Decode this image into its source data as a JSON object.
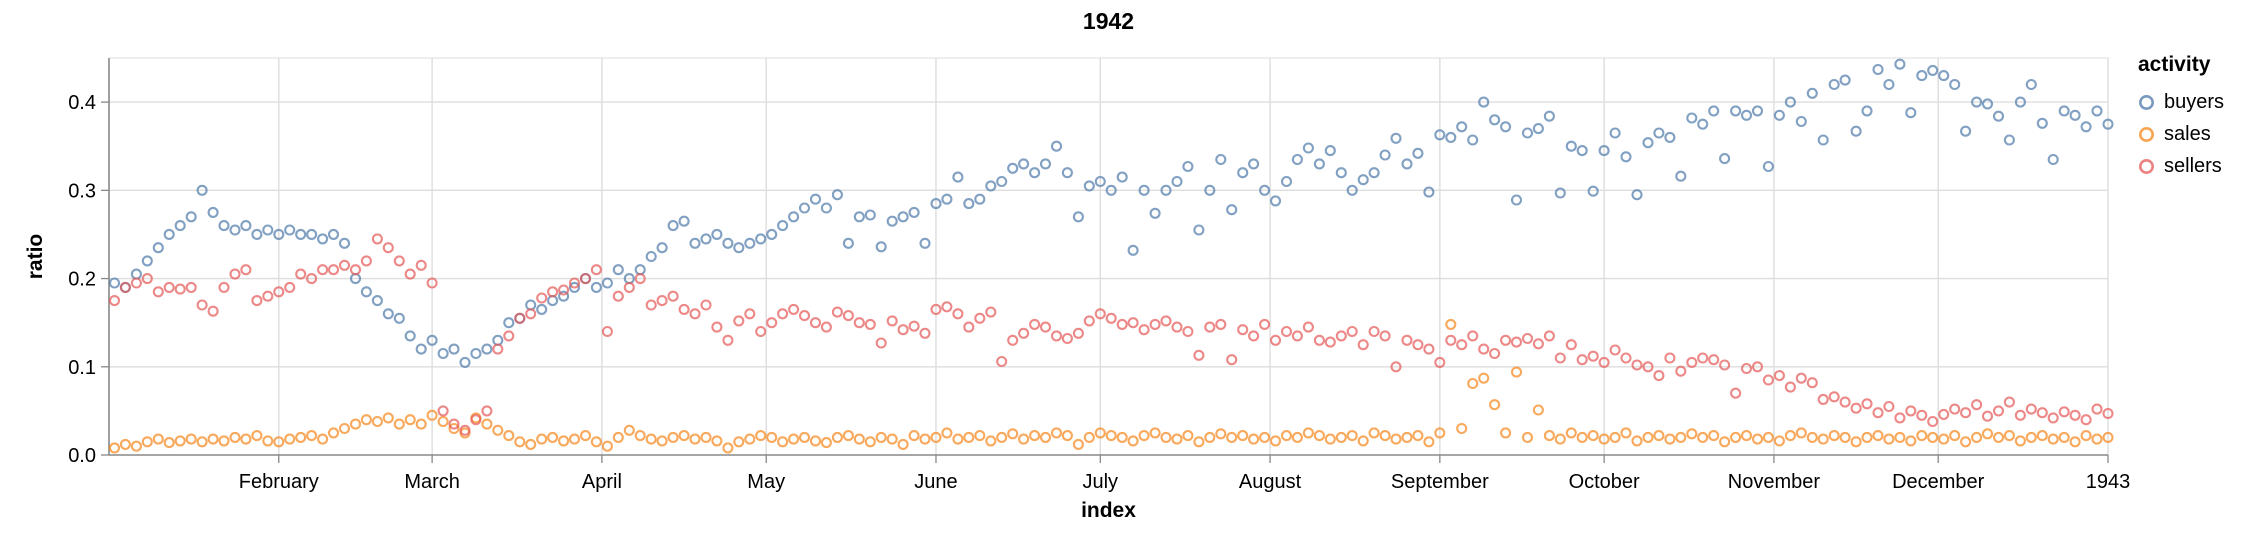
{
  "title": "1942",
  "axes": {
    "x": {
      "label": "index",
      "ticks": [
        "February",
        "March",
        "April",
        "May",
        "June",
        "July",
        "August",
        "September",
        "October",
        "November",
        "December",
        "1943"
      ]
    },
    "y": {
      "label": "ratio",
      "ticks": [
        "0.0",
        "0.1",
        "0.2",
        "0.3",
        "0.4"
      ]
    }
  },
  "legend": {
    "title": "activity",
    "items": [
      {
        "label": "buyers",
        "color": "#4c78a8"
      },
      {
        "label": "sales",
        "color": "#f58518"
      },
      {
        "label": "sellers",
        "color": "#e45756"
      }
    ]
  },
  "colors": {
    "grid": "#dddddd",
    "axis_domain": "#888888",
    "text": "#000000"
  },
  "chart_data": {
    "type": "scatter",
    "title": "1942",
    "xlabel": "index",
    "ylabel": "ratio",
    "ylim": [
      0,
      0.45
    ],
    "y_gridlines": [
      0.1,
      0.2,
      0.3,
      0.4
    ],
    "x_domain_days": 365,
    "x_tick_days": [
      31,
      59,
      90,
      120,
      151,
      181,
      212,
      243,
      273,
      304,
      334,
      365
    ],
    "x_start_day": 1,
    "x_step_days": 2,
    "legend_position": "right",
    "grid": true,
    "series": [
      {
        "name": "buyers",
        "color": "#4c78a8",
        "values": [
          0.195,
          0.19,
          0.205,
          0.22,
          0.235,
          0.25,
          0.26,
          0.27,
          0.3,
          0.275,
          0.26,
          0.255,
          0.26,
          0.25,
          0.255,
          0.25,
          0.255,
          0.25,
          0.25,
          0.245,
          0.25,
          0.24,
          0.2,
          0.185,
          0.175,
          0.16,
          0.155,
          0.135,
          0.12,
          0.13,
          0.115,
          0.12,
          0.105,
          0.115,
          0.12,
          0.13,
          0.15,
          0.155,
          0.17,
          0.165,
          0.175,
          0.18,
          0.19,
          0.2,
          0.19,
          0.195,
          0.21,
          0.2,
          0.21,
          0.225,
          0.235,
          0.26,
          0.265,
          0.24,
          0.245,
          0.25,
          0.24,
          0.235,
          0.24,
          0.245,
          0.25,
          0.26,
          0.27,
          0.28,
          0.29,
          0.28,
          0.295,
          0.24,
          0.27,
          0.272,
          0.236,
          0.265,
          0.27,
          0.275,
          0.24,
          0.285,
          0.29,
          0.315,
          0.285,
          0.29,
          0.305,
          0.31,
          0.325,
          0.33,
          0.32,
          0.33,
          0.35,
          0.32,
          0.27,
          0.305,
          0.31,
          0.3,
          0.315,
          0.232,
          0.3,
          0.274,
          0.3,
          0.31,
          0.327,
          0.255,
          0.3,
          0.335,
          0.278,
          0.32,
          0.33,
          0.3,
          0.288,
          0.31,
          0.335,
          0.348,
          0.33,
          0.345,
          0.32,
          0.3,
          0.312,
          0.32,
          0.34,
          0.359,
          0.33,
          0.342,
          0.298,
          0.363,
          0.36,
          0.372,
          0.357,
          0.4,
          0.38,
          0.372,
          0.289,
          0.365,
          0.37,
          0.384,
          0.297,
          0.35,
          0.345,
          0.299,
          0.345,
          0.365,
          0.338,
          0.295,
          0.354,
          0.365,
          0.36,
          0.316,
          0.382,
          0.375,
          0.39,
          0.336,
          0.39,
          0.385,
          0.39,
          0.327,
          0.385,
          0.4,
          0.378,
          0.41,
          0.357,
          0.42,
          0.425,
          0.367,
          0.39,
          0.437,
          0.42,
          0.443,
          0.388,
          0.43,
          0.436,
          0.43,
          0.42,
          0.367,
          0.4,
          0.398,
          0.384,
          0.357,
          0.4,
          0.42,
          0.376,
          0.335,
          0.39,
          0.385,
          0.372,
          0.39,
          0.375
        ]
      },
      {
        "name": "sales",
        "color": "#f58518",
        "values": [
          0.008,
          0.012,
          0.01,
          0.015,
          0.018,
          0.014,
          0.016,
          0.018,
          0.015,
          0.018,
          0.016,
          0.02,
          0.018,
          0.022,
          0.016,
          0.015,
          0.018,
          0.02,
          0.022,
          0.018,
          0.025,
          0.03,
          0.035,
          0.04,
          0.038,
          0.042,
          0.035,
          0.04,
          0.035,
          0.045,
          0.038,
          0.03,
          0.025,
          0.042,
          0.035,
          0.028,
          0.022,
          0.015,
          0.012,
          0.018,
          0.02,
          0.016,
          0.018,
          0.022,
          0.015,
          0.01,
          0.02,
          0.028,
          0.022,
          0.018,
          0.016,
          0.02,
          0.022,
          0.018,
          0.02,
          0.016,
          0.008,
          0.015,
          0.018,
          0.022,
          0.02,
          0.015,
          0.018,
          0.02,
          0.016,
          0.014,
          0.02,
          0.022,
          0.018,
          0.015,
          0.02,
          0.018,
          0.012,
          0.022,
          0.018,
          0.02,
          0.025,
          0.018,
          0.02,
          0.022,
          0.016,
          0.02,
          0.024,
          0.018,
          0.022,
          0.02,
          0.025,
          0.022,
          0.012,
          0.02,
          0.025,
          0.022,
          0.02,
          0.016,
          0.022,
          0.025,
          0.02,
          0.018,
          0.022,
          0.015,
          0.02,
          0.024,
          0.02,
          0.022,
          0.018,
          0.02,
          0.016,
          0.022,
          0.02,
          0.025,
          0.022,
          0.018,
          0.02,
          0.022,
          0.016,
          0.025,
          0.022,
          0.018,
          0.02,
          0.022,
          0.015,
          0.025,
          0.148,
          0.03,
          0.081,
          0.087,
          0.057,
          0.025,
          0.094,
          0.02,
          0.051,
          0.022,
          0.018,
          0.025,
          0.02,
          0.022,
          0.018,
          0.02,
          0.025,
          0.016,
          0.02,
          0.022,
          0.018,
          0.02,
          0.024,
          0.02,
          0.022,
          0.015,
          0.02,
          0.022,
          0.018,
          0.02,
          0.016,
          0.022,
          0.025,
          0.02,
          0.018,
          0.022,
          0.02,
          0.015,
          0.02,
          0.022,
          0.018,
          0.02,
          0.016,
          0.022,
          0.02,
          0.018,
          0.022,
          0.015,
          0.02,
          0.024,
          0.02,
          0.022,
          0.016,
          0.02,
          0.022,
          0.018,
          0.02,
          0.015,
          0.022,
          0.018,
          0.02
        ]
      },
      {
        "name": "sellers",
        "color": "#e45756",
        "values": [
          0.175,
          0.19,
          0.195,
          0.2,
          0.185,
          0.19,
          0.188,
          0.19,
          0.17,
          0.163,
          0.19,
          0.205,
          0.21,
          0.175,
          0.18,
          0.185,
          0.19,
          0.205,
          0.2,
          0.21,
          0.21,
          0.215,
          0.21,
          0.22,
          0.245,
          0.235,
          0.22,
          0.205,
          0.215,
          0.195,
          0.05,
          0.035,
          0.028,
          0.04,
          0.05,
          0.12,
          0.135,
          0.155,
          0.16,
          0.178,
          0.185,
          0.187,
          0.195,
          0.2,
          0.21,
          0.14,
          0.18,
          0.19,
          0.2,
          0.17,
          0.175,
          0.18,
          0.165,
          0.16,
          0.17,
          0.145,
          0.13,
          0.152,
          0.16,
          0.14,
          0.15,
          0.16,
          0.165,
          0.158,
          0.15,
          0.145,
          0.162,
          0.158,
          0.15,
          0.148,
          0.127,
          0.152,
          0.142,
          0.146,
          0.138,
          0.165,
          0.168,
          0.16,
          0.145,
          0.155,
          0.162,
          0.106,
          0.13,
          0.138,
          0.148,
          0.145,
          0.135,
          0.132,
          0.138,
          0.152,
          0.16,
          0.155,
          0.148,
          0.15,
          0.142,
          0.148,
          0.152,
          0.145,
          0.14,
          0.113,
          0.145,
          0.148,
          0.108,
          0.142,
          0.135,
          0.148,
          0.13,
          0.14,
          0.135,
          0.145,
          0.13,
          0.128,
          0.135,
          0.14,
          0.125,
          0.14,
          0.135,
          0.1,
          0.13,
          0.125,
          0.12,
          0.105,
          0.13,
          0.125,
          0.135,
          0.12,
          0.115,
          0.13,
          0.128,
          0.132,
          0.126,
          0.135,
          0.11,
          0.125,
          0.108,
          0.112,
          0.105,
          0.119,
          0.11,
          0.102,
          0.1,
          0.09,
          0.11,
          0.095,
          0.105,
          0.11,
          0.108,
          0.102,
          0.07,
          0.098,
          0.1,
          0.085,
          0.09,
          0.077,
          0.087,
          0.082,
          0.063,
          0.066,
          0.06,
          0.053,
          0.058,
          0.048,
          0.055,
          0.042,
          0.05,
          0.045,
          0.038,
          0.046,
          0.052,
          0.048,
          0.057,
          0.044,
          0.05,
          0.06,
          0.045,
          0.052,
          0.048,
          0.042,
          0.049,
          0.045,
          0.04,
          0.052,
          0.047
        ]
      }
    ]
  }
}
